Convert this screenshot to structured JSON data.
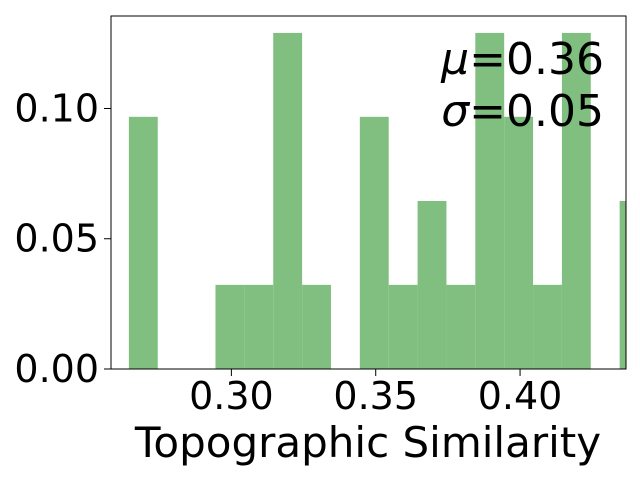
{
  "chart_data": {
    "type": "bar",
    "histogram": true,
    "xlabel": "Topographic Similarity",
    "ylabel": "",
    "title": "",
    "xlim": [
      0.2583,
      0.4367
    ],
    "ylim": [
      0,
      0.1355
    ],
    "x_ticks": [
      0.3,
      0.35,
      0.4
    ],
    "x_tick_labels": [
      "0.30",
      "0.35",
      "0.40"
    ],
    "y_ticks": [
      0.0,
      0.05,
      0.1
    ],
    "y_tick_labels": [
      "0.00",
      "0.05",
      "0.10"
    ],
    "bin_width": 0.01,
    "bars": [
      {
        "x0": 0.2645,
        "x1": 0.2745,
        "value": 0.0968
      },
      {
        "x0": 0.2745,
        "x1": 0.2845,
        "value": 0.0
      },
      {
        "x0": 0.2845,
        "x1": 0.2945,
        "value": 0.0
      },
      {
        "x0": 0.2945,
        "x1": 0.3045,
        "value": 0.0323
      },
      {
        "x0": 0.3045,
        "x1": 0.3145,
        "value": 0.0323
      },
      {
        "x0": 0.3145,
        "x1": 0.3245,
        "value": 0.129
      },
      {
        "x0": 0.3245,
        "x1": 0.3345,
        "value": 0.0323
      },
      {
        "x0": 0.3345,
        "x1": 0.3445,
        "value": 0.0
      },
      {
        "x0": 0.3445,
        "x1": 0.3545,
        "value": 0.0968
      },
      {
        "x0": 0.3545,
        "x1": 0.3645,
        "value": 0.0323
      },
      {
        "x0": 0.3645,
        "x1": 0.3745,
        "value": 0.0645
      },
      {
        "x0": 0.3745,
        "x1": 0.3845,
        "value": 0.0323
      },
      {
        "x0": 0.3845,
        "x1": 0.3945,
        "value": 0.129
      },
      {
        "x0": 0.3945,
        "x1": 0.4045,
        "value": 0.0968
      },
      {
        "x0": 0.4045,
        "x1": 0.4145,
        "value": 0.0323
      },
      {
        "x0": 0.4145,
        "x1": 0.4245,
        "value": 0.129
      },
      {
        "x0": 0.4245,
        "x1": 0.4345,
        "value": 0.0
      },
      {
        "x0": 0.4345,
        "x1": 0.4445,
        "value": 0.0645
      }
    ],
    "bar_color": "#80bf80",
    "annotation": {
      "mu_symbol": "μ",
      "mu_value": "=0.36",
      "sigma_symbol": "σ",
      "sigma_value": "=0.05",
      "placement": "top-right"
    },
    "grid": false,
    "legend": "none"
  }
}
